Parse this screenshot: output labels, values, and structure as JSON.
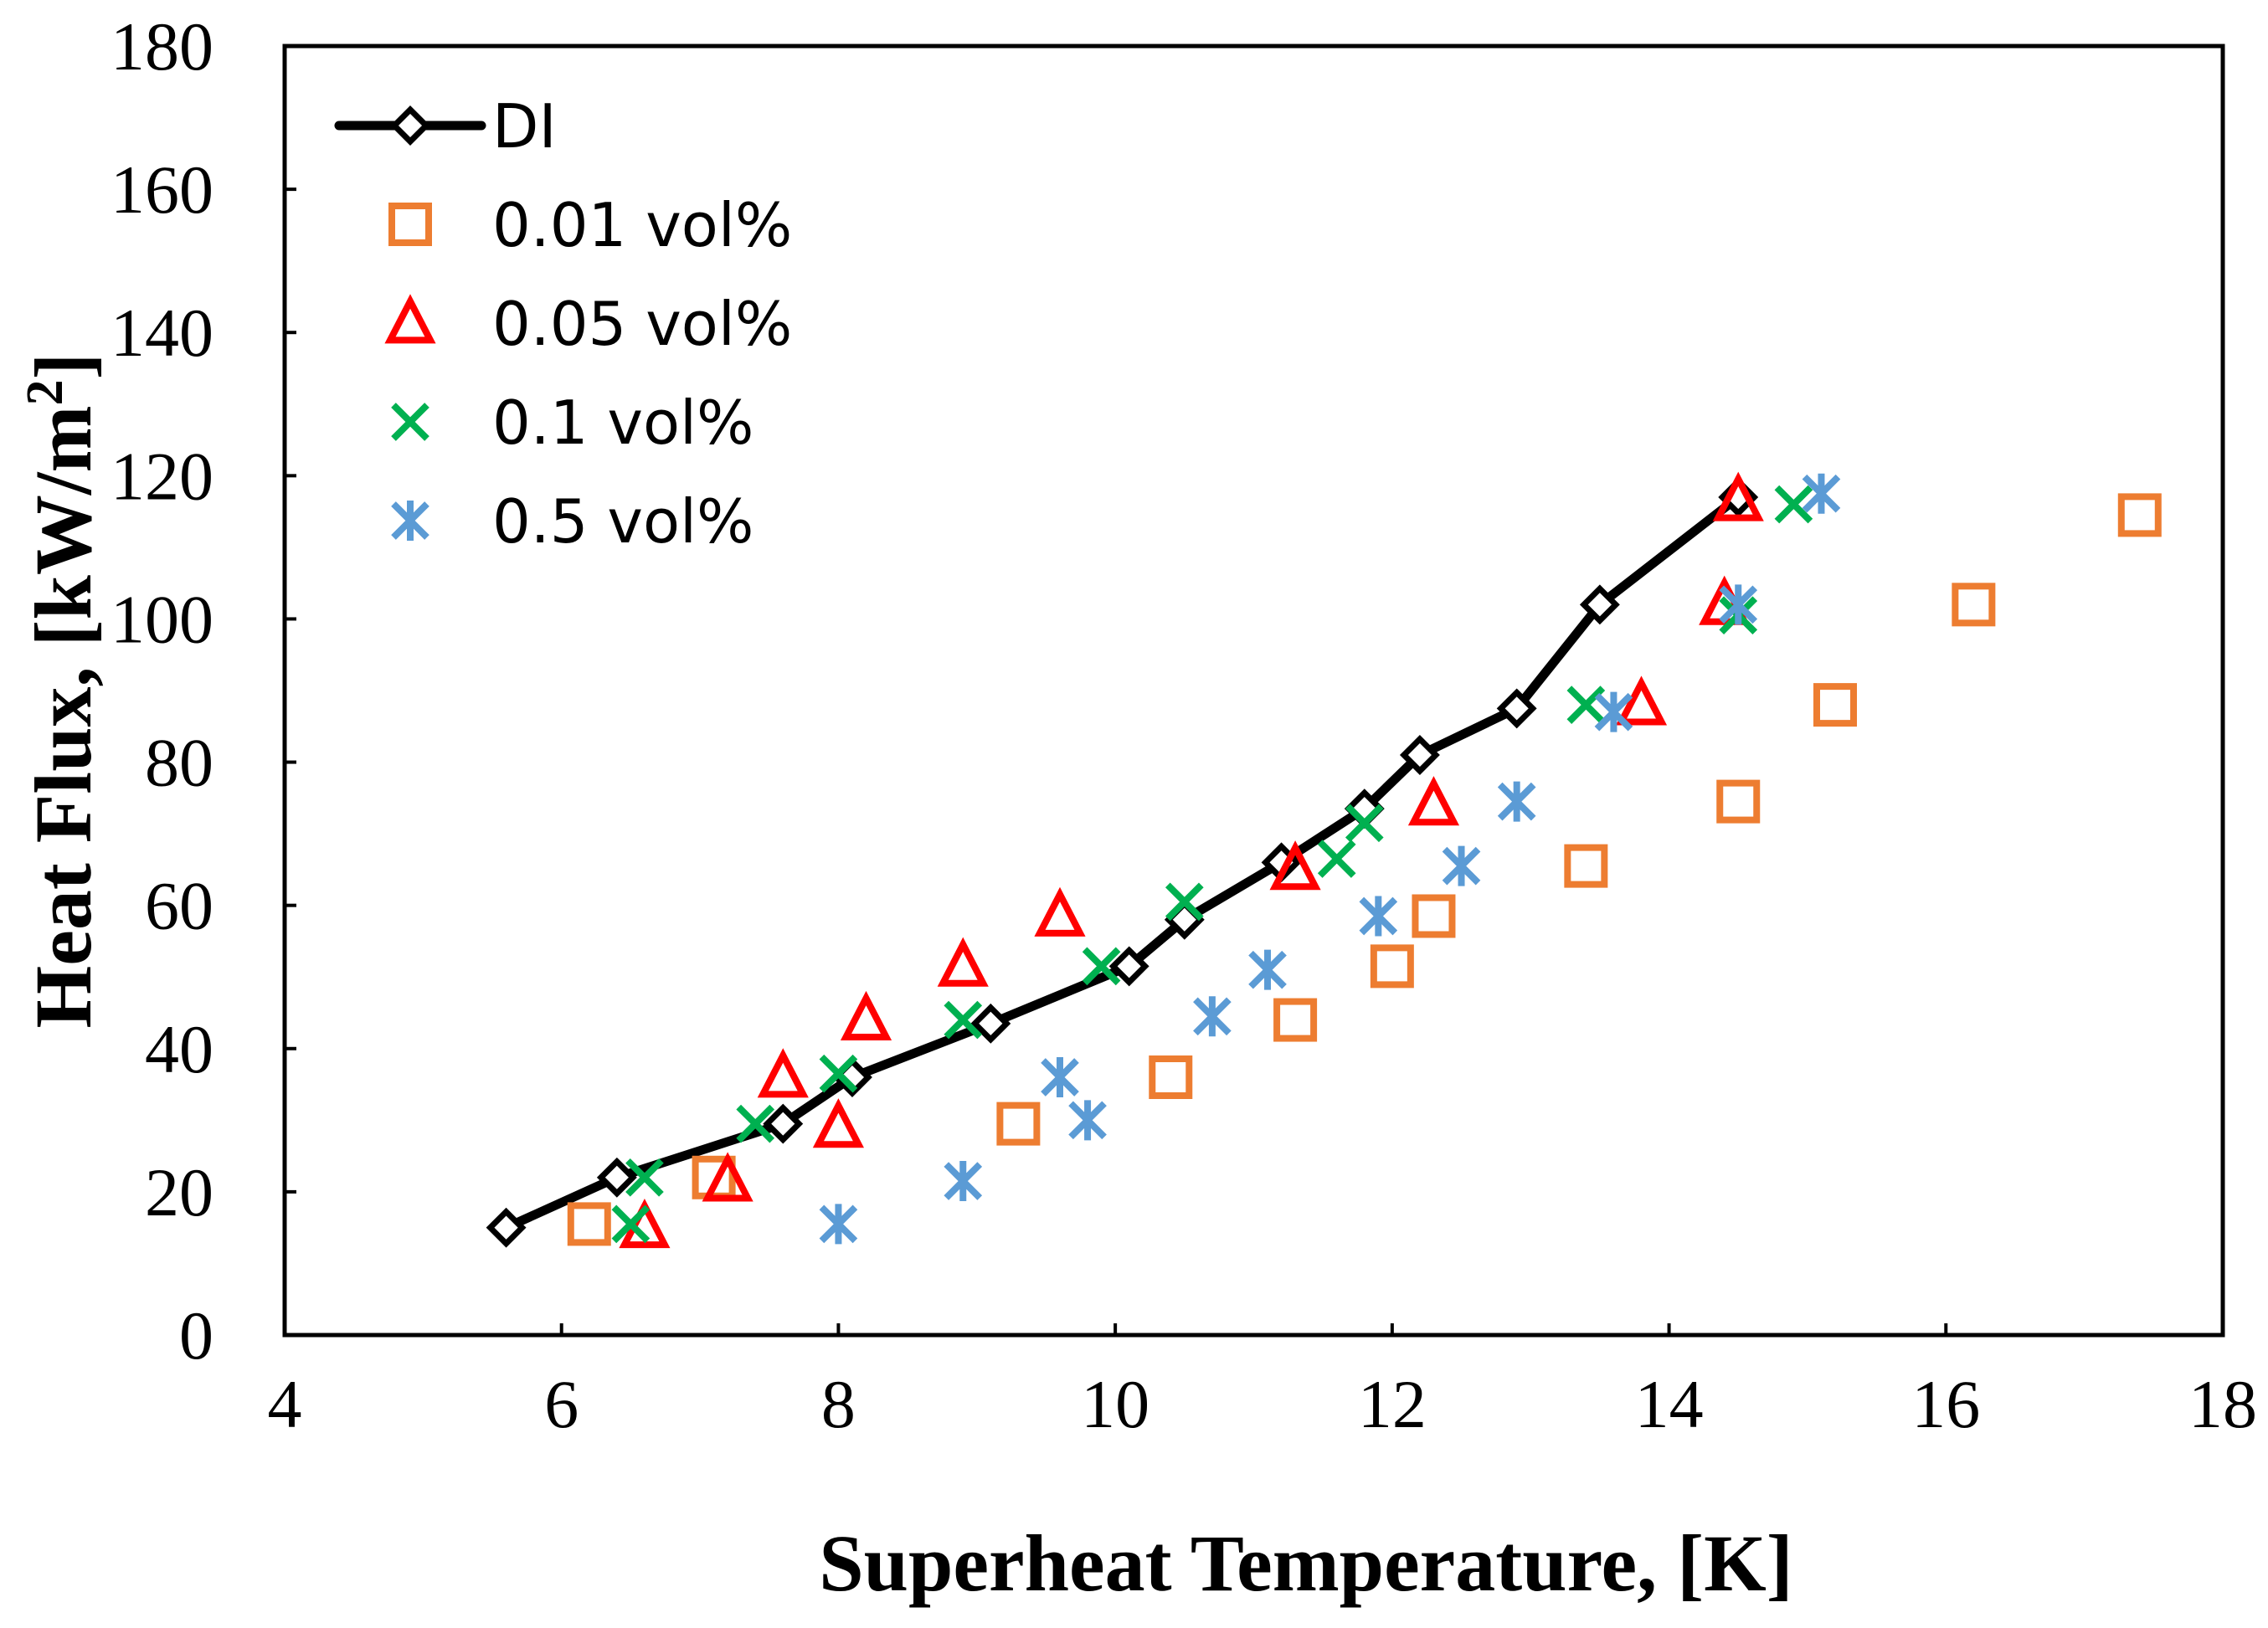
{
  "chart_data": {
    "type": "scatter",
    "title": "",
    "xlabel": "Superheat Temperature, [K]",
    "ylabel_main": "Heat Flux, [kW/m",
    "ylabel_sup": "2",
    "ylabel_end": "]",
    "xlim": [
      4,
      18
    ],
    "ylim": [
      0,
      180
    ],
    "xticks": [
      "4",
      "6",
      "8",
      "10",
      "12",
      "14",
      "16",
      "18"
    ],
    "yticks": [
      "0",
      "20",
      "40",
      "60",
      "80",
      "100",
      "120",
      "140",
      "160",
      "180"
    ],
    "grid": false,
    "legend_position": "top-left",
    "series": [
      {
        "name": "DI",
        "marker": "diamond",
        "line": true,
        "color": "#000000",
        "x": [
          5.6,
          6.4,
          7.6,
          8.1,
          9.1,
          10.1,
          10.5,
          11.2,
          11.8,
          12.2,
          12.9,
          13.5,
          14.5
        ],
        "y": [
          15,
          22,
          29.5,
          36,
          43.5,
          51.5,
          58,
          66,
          73.5,
          81,
          87.5,
          102,
          117
        ]
      },
      {
        "name": "0.01 vol%",
        "marker": "square",
        "line": false,
        "color": "#ED7D31",
        "x": [
          6.2,
          7.1,
          9.3,
          10.4,
          11.3,
          12.0,
          12.3,
          13.4,
          14.5,
          15.2,
          16.2,
          17.4
        ],
        "y": [
          15.5,
          22,
          29.5,
          36,
          44,
          51.5,
          58.5,
          65.5,
          74.5,
          88,
          102,
          114.5
        ]
      },
      {
        "name": "0.05 vol%",
        "marker": "triangle",
        "line": false,
        "color": "#FF0000",
        "x": [
          6.6,
          7.2,
          7.6,
          8.0,
          8.2,
          8.9,
          9.6,
          11.3,
          12.3,
          13.8,
          14.4,
          14.5
        ],
        "y": [
          15,
          21.5,
          36,
          29,
          44,
          51.5,
          58.5,
          65,
          74,
          88,
          102,
          116.5
        ]
      },
      {
        "name": "0.1 vol%",
        "marker": "x",
        "line": false,
        "color": "#00B050",
        "x": [
          6.5,
          6.6,
          7.4,
          8.0,
          8.9,
          9.9,
          10.5,
          11.6,
          11.8,
          13.4,
          14.5,
          14.9
        ],
        "y": [
          15.5,
          22,
          29.5,
          36.5,
          44,
          51.5,
          60.5,
          66.5,
          71.5,
          88,
          100.5,
          116
        ]
      },
      {
        "name": "0.5 vol%",
        "marker": "star",
        "line": false,
        "color": "#5B9BD5",
        "x": [
          8.0,
          8.9,
          9.6,
          9.8,
          10.7,
          11.1,
          11.9,
          12.5,
          12.9,
          13.6,
          14.5,
          15.1
        ],
        "y": [
          15.5,
          21.5,
          36,
          30,
          44.5,
          51,
          58.5,
          65.5,
          74.5,
          87,
          102,
          117.5
        ]
      }
    ]
  }
}
